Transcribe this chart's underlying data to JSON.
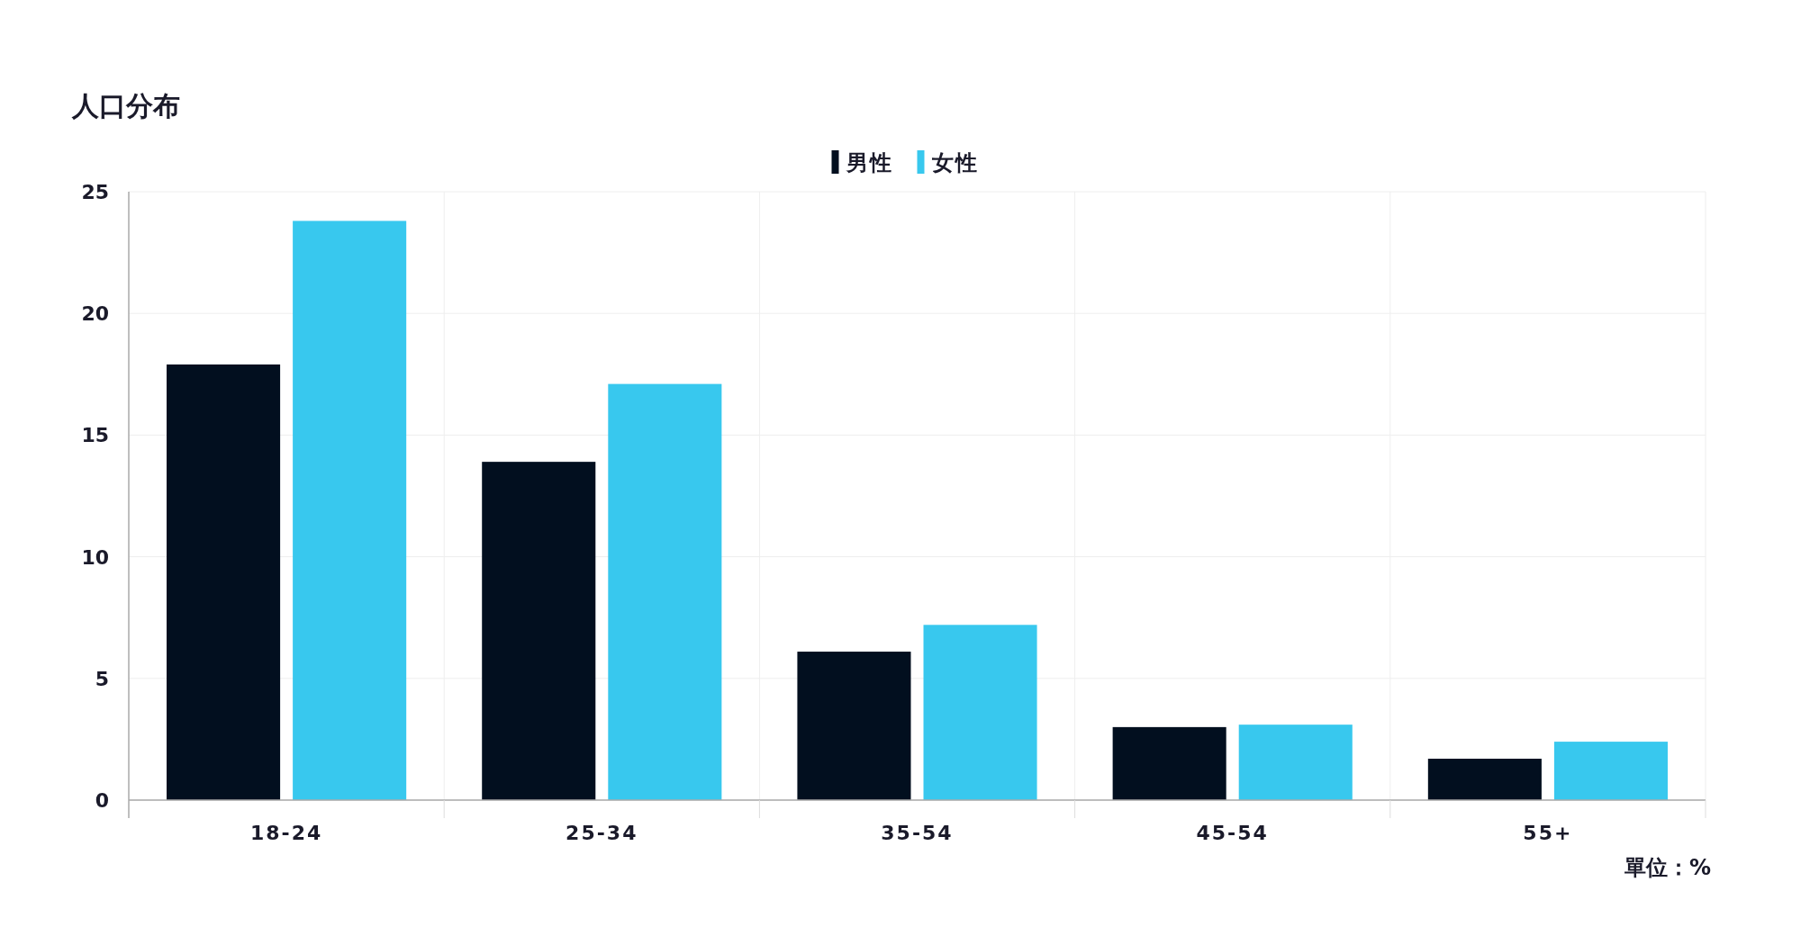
{
  "chart_data": {
    "type": "bar",
    "title": "人口分布",
    "categories": [
      "18-24",
      "25-34",
      "35-54",
      "45-54",
      "55+"
    ],
    "series": [
      {
        "name": "男性",
        "color": "#020f1f",
        "values": [
          17.9,
          13.9,
          6.1,
          3.0,
          1.7
        ]
      },
      {
        "name": "女性",
        "color": "#38c8ee",
        "values": [
          23.8,
          17.1,
          7.2,
          3.1,
          2.4
        ]
      }
    ],
    "ylim": [
      0,
      25
    ],
    "yticks": [
      0,
      5,
      10,
      15,
      20,
      25
    ],
    "grid": true,
    "legend": "top",
    "annotations": [
      "單位：%"
    ]
  }
}
